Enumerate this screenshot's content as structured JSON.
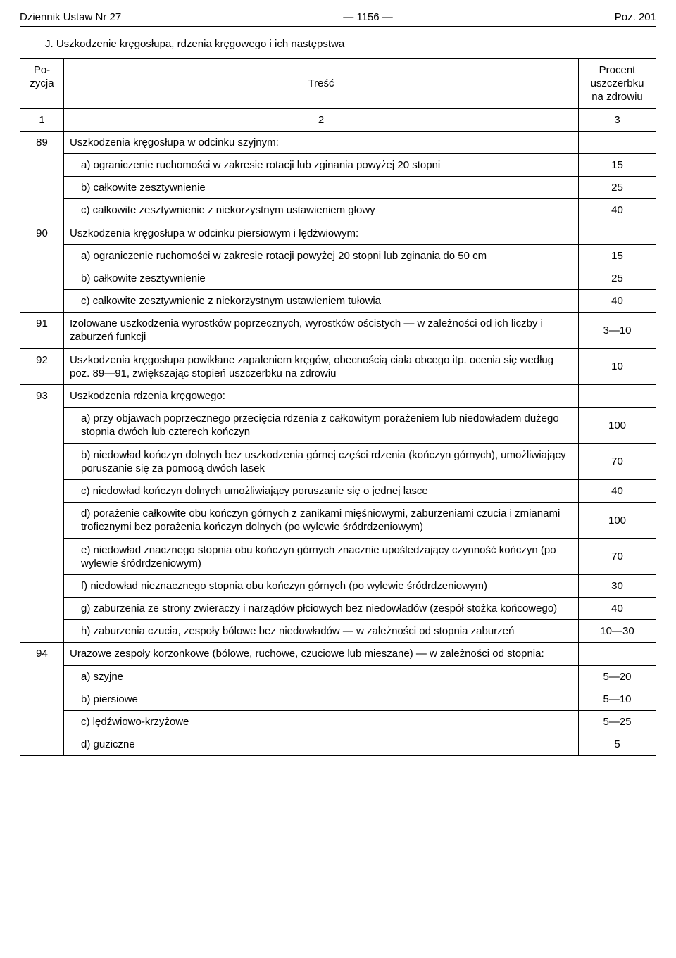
{
  "header": {
    "left": "Dziennik Ustaw Nr 27",
    "center": "— 1156 —",
    "right": "Poz. 201"
  },
  "section_title": "J. Uszkodzenie kręgosłupa, rdzenia kręgowego i ich następstwa",
  "columns": {
    "pozycja": "Po-\nzycja",
    "tresc": "Treść",
    "procent": "Procent\nuszczerbku\nna zdrowiu",
    "n1": "1",
    "n2": "2",
    "n3": "3"
  },
  "rows": [
    {
      "poz": "89",
      "text": "Uszkodzenia kręgosłupa w odcinku szyjnym:",
      "val": ""
    },
    {
      "poz": "",
      "text": "a) ograniczenie ruchomości w zakresie rotacji lub zginania powyżej 20 stopni",
      "val": "15"
    },
    {
      "poz": "",
      "text": "b) całkowite zesztywnienie",
      "val": "25"
    },
    {
      "poz": "",
      "text": "c) całkowite zesztywnienie z niekorzystnym ustawieniem głowy",
      "val": "40"
    },
    {
      "poz": "90",
      "text": "Uszkodzenia kręgosłupa w odcinku piersiowym i lędźwiowym:",
      "val": ""
    },
    {
      "poz": "",
      "text": "a) ograniczenie ruchomości w zakresie rotacji powyżej 20 stopni lub zginania do 50 cm",
      "val": "15"
    },
    {
      "poz": "",
      "text": "b) całkowite zesztywnienie",
      "val": "25"
    },
    {
      "poz": "",
      "text": "c) całkowite zesztywnienie z niekorzystnym ustawieniem tułowia",
      "val": "40"
    },
    {
      "poz": "91",
      "text": "Izolowane uszkodzenia wyrostków poprzecznych, wyrostków ościstych — w zależności od ich liczby i zaburzeń funkcji",
      "val": "3—10"
    },
    {
      "poz": "92",
      "text": "Uszkodzenia kręgosłupa powikłane zapaleniem kręgów, obecnością ciała obcego itp. ocenia się według poz. 89—91, zwiększając stopień uszczerbku na zdrowiu",
      "val": "10"
    },
    {
      "poz": "93",
      "text": "Uszkodzenia rdzenia kręgowego:",
      "val": ""
    },
    {
      "poz": "",
      "text": "a) przy objawach poprzecznego przecięcia rdzenia z całkowitym porażeniem lub niedowładem dużego stopnia dwóch lub czterech kończyn",
      "val": "100"
    },
    {
      "poz": "",
      "text": "b) niedowład kończyn dolnych bez uszkodzenia górnej części rdzenia (kończyn górnych), umożliwiający poruszanie się za pomocą dwóch lasek",
      "val": "70"
    },
    {
      "poz": "",
      "text": "c) niedowład kończyn dolnych umożliwiający poruszanie się o jednej lasce",
      "val": "40"
    },
    {
      "poz": "",
      "text": "d) porażenie całkowite obu kończyn górnych z zanikami mięśniowymi, zaburzeniami czucia i zmianami troficznymi bez porażenia kończyn dolnych (po wylewie śródrdzeniowym)",
      "val": "100"
    },
    {
      "poz": "",
      "text": "e) niedowład znacznego stopnia obu kończyn górnych znacznie upośledzający czynność kończyn (po wylewie śródrdzeniowym)",
      "val": "70"
    },
    {
      "poz": "",
      "text": "f) niedowład nieznacznego stopnia obu kończyn górnych (po wylewie śródrdzeniowym)",
      "val": "30"
    },
    {
      "poz": "",
      "text": "g) zaburzenia ze strony zwieraczy i narządów płciowych bez niedowładów (zespół stożka końcowego)",
      "val": "40"
    },
    {
      "poz": "",
      "text": "h) zaburzenia czucia, zespoły bólowe bez niedowładów — w zależności od stopnia zaburzeń",
      "val": "10—30"
    },
    {
      "poz": "94",
      "text": "Urazowe zespoły korzonkowe (bólowe, ruchowe, czuciowe lub mieszane) — w zależności od stopnia:",
      "val": ""
    },
    {
      "poz": "",
      "text": "a) szyjne",
      "val": "5—20"
    },
    {
      "poz": "",
      "text": "b) piersiowe",
      "val": "5—10"
    },
    {
      "poz": "",
      "text": "c) lędźwiowo-krzyżowe",
      "val": "5—25"
    },
    {
      "poz": "",
      "text": "d) guziczne",
      "val": "5"
    }
  ]
}
